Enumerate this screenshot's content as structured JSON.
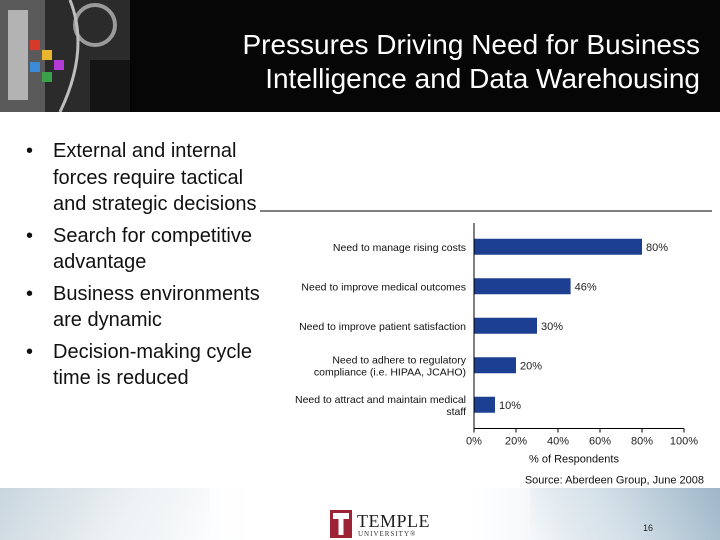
{
  "slide": {
    "title_lines": [
      "Pressures Driving Need for Business",
      "Intelligence and Data Warehousing"
    ],
    "bullets": [
      "External and internal forces require tactical and strategic decisions",
      "Search for competitive advantage",
      "Business environments are dynamic",
      "Decision-making cycle time is reduced"
    ],
    "bullet_symbol": "•",
    "page_number": "16",
    "logo": {
      "name": "TEMPLE",
      "sub": "UNIVERSITY®",
      "color": "#9d2235"
    }
  },
  "chart_data": {
    "type": "bar",
    "orientation": "horizontal",
    "categories": [
      [
        "Need to manage rising costs"
      ],
      [
        "Need to improve medical outcomes"
      ],
      [
        "Need to improve patient satisfaction"
      ],
      [
        "Need to adhere to regulatory",
        "compliance (i.e. HIPAA, JCAHO)"
      ],
      [
        "Need to attract and maintain medical",
        "staff"
      ]
    ],
    "values": [
      80,
      46,
      30,
      20,
      10
    ],
    "value_labels": [
      "80%",
      "46%",
      "30%",
      "20%",
      "10%"
    ],
    "xlim": [
      0,
      100
    ],
    "xticks": [
      "0%",
      "20%",
      "40%",
      "60%",
      "80%",
      "100%"
    ],
    "xlabel": "% of Respondents",
    "source": "Source: Aberdeen Group, June 2008",
    "bar_color": "#1d3f91",
    "grid": false
  }
}
